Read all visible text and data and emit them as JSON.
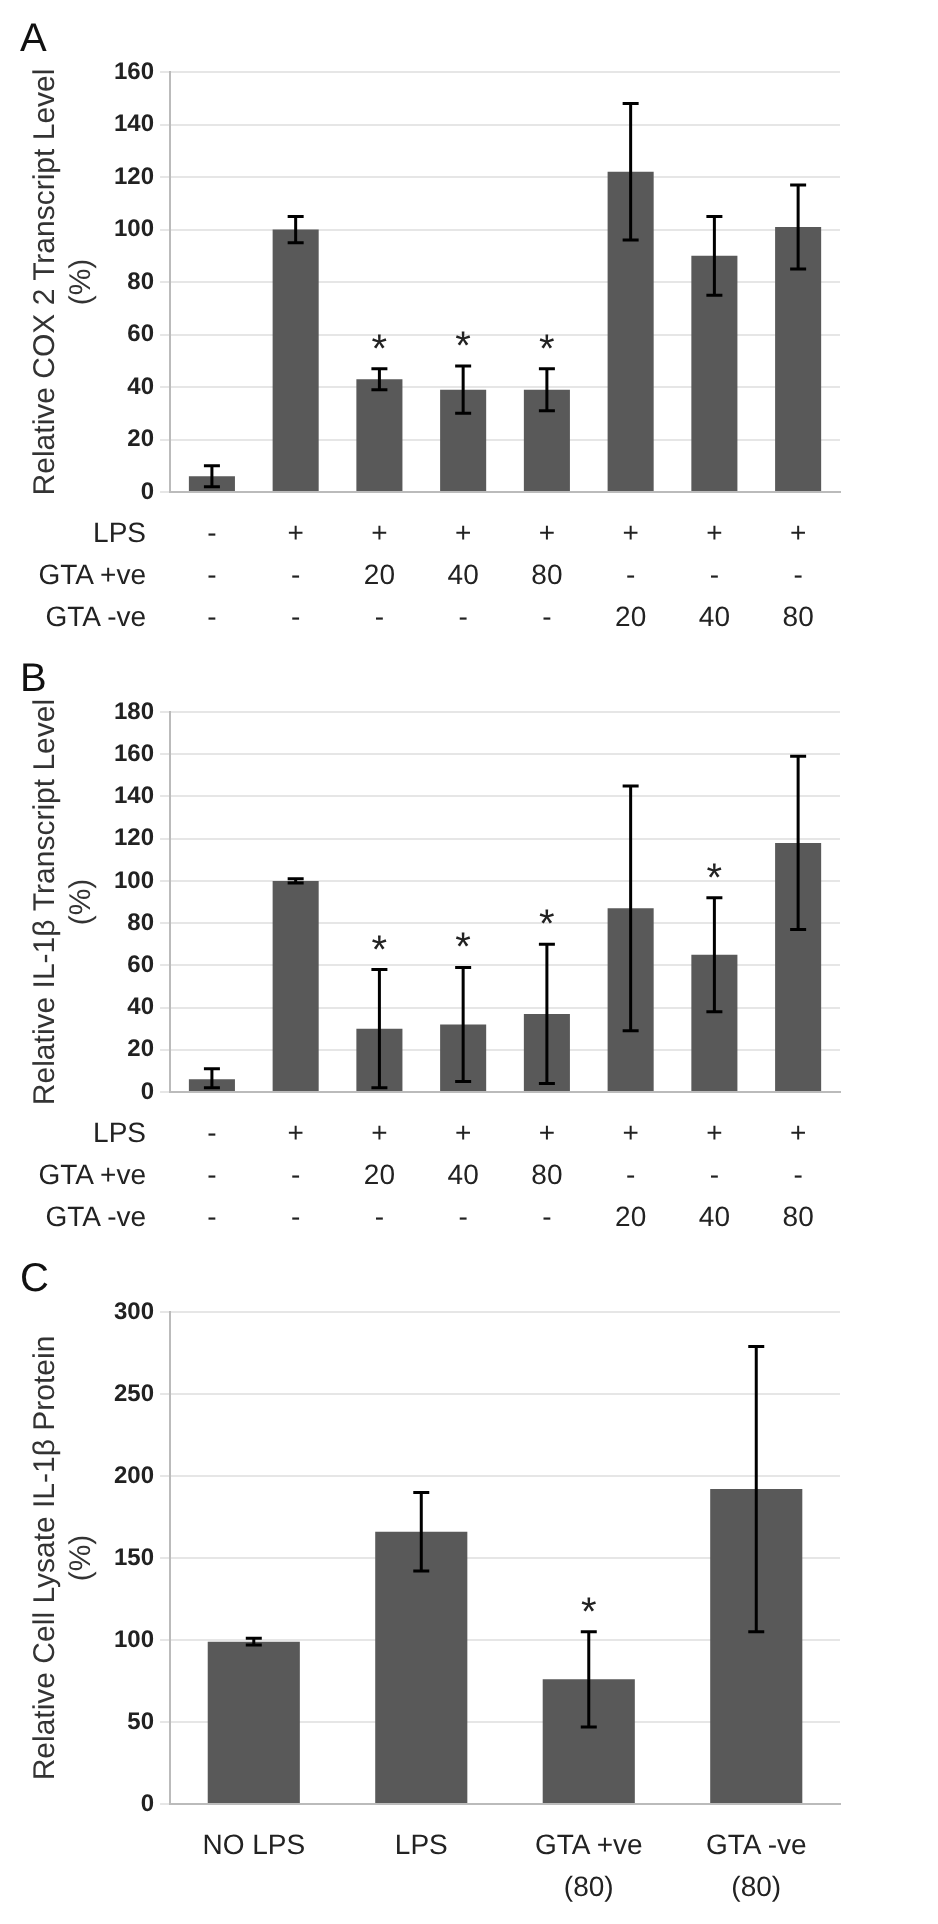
{
  "chart_data": [
    {
      "type": "bar",
      "title": "A",
      "ylabel": "Relative COX 2 Transcript Level\n(%)",
      "categories": [
        "-\n-\n-",
        "+\n-\n-",
        "+\n20\n-",
        "+\n40\n-",
        "+\n80\n-",
        "+\n-\n20",
        "+\n-\n40",
        "+\n-\n80"
      ],
      "series": [
        {
          "color": "#595959",
          "values": [
            6,
            100,
            43,
            39,
            39,
            122,
            90,
            101
          ],
          "errors": [
            4,
            5,
            4,
            9,
            8,
            26,
            15,
            16
          ]
        }
      ],
      "ylim": [
        0,
        160
      ],
      "yticks": [
        0,
        20,
        40,
        60,
        80,
        100,
        120,
        140,
        160
      ],
      "grid": "y",
      "legend": false,
      "annotations": [
        "LPS\nGTA +ve\nGTA -ve",
        {
          "text": "*",
          "x": "+\n20\n-",
          "y": 43
        },
        {
          "text": "*",
          "x": "+\n40\n-",
          "y": 39
        },
        {
          "text": "*",
          "x": "+\n80\n-",
          "y": 39
        }
      ]
    },
    {
      "type": "bar",
      "title": "B",
      "ylabel": "Relative IL-1β Transcript Level\n(%)",
      "categories": [
        "-\n-\n-",
        "+\n-\n-",
        "+\n20\n-",
        "+\n40\n-",
        "+\n80\n-",
        "+\n-\n20",
        "+\n-\n40",
        "+\n-\n80"
      ],
      "series": [
        {
          "color": "#595959",
          "values": [
            6,
            100,
            30,
            32,
            37,
            87,
            65,
            118
          ],
          "errors": [
            [
              2,
              11
            ],
            1,
            28,
            27,
            33,
            58,
            27,
            41
          ]
        }
      ],
      "ylim": [
        0,
        180
      ],
      "yticks": [
        0,
        20,
        40,
        60,
        80,
        100,
        120,
        140,
        160,
        180
      ],
      "grid": "y",
      "legend": false,
      "annotations": [
        "LPS\nGTA +ve\nGTA -ve",
        {
          "text": "*",
          "x": "+\n20\n-",
          "y": 30
        },
        {
          "text": "*",
          "x": "+\n40\n-",
          "y": 32
        },
        {
          "text": "*",
          "x": "+\n80\n-",
          "y": 37
        },
        {
          "text": "*",
          "x": "+\n-\n40",
          "y": 65
        }
      ]
    },
    {
      "type": "bar",
      "title": "C",
      "ylabel": "Relative Cell Lysate IL-1β Protein\n(%)",
      "categories": [
        "NO LPS",
        "LPS",
        "GTA +ve\n(80)",
        "GTA -ve\n(80)"
      ],
      "series": [
        {
          "color": "#595959",
          "values": [
            99,
            166,
            76,
            192
          ],
          "errors": [
            2,
            24,
            29,
            87
          ]
        }
      ],
      "ylim": [
        0,
        300
      ],
      "yticks": [
        0,
        50,
        100,
        150,
        200,
        250,
        300
      ],
      "grid": "y",
      "legend": false,
      "annotations": [
        {
          "text": "*",
          "x": "GTA +ve\n(80)",
          "y": 76
        }
      ]
    }
  ]
}
